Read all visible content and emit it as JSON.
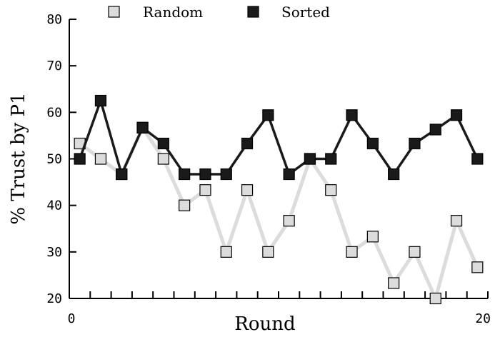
{
  "chart_data": {
    "type": "line",
    "title": "",
    "xlabel": "Round",
    "ylabel": "% Trust by P1",
    "xlim": [
      0,
      20
    ],
    "ylim": [
      20,
      80
    ],
    "x_ticks": [
      0,
      20
    ],
    "y_ticks": [
      20,
      30,
      40,
      50,
      60,
      70,
      80
    ],
    "x_minor_ticks": [
      1,
      2,
      3,
      4,
      5,
      6,
      7,
      8,
      9,
      10,
      11,
      12,
      13,
      14,
      15,
      16,
      17,
      18,
      19
    ],
    "grid": false,
    "legend_position": "top",
    "x": [
      0.5,
      1.5,
      2.5,
      3.5,
      4.5,
      5.5,
      6.5,
      7.5,
      8.5,
      9.5,
      10.5,
      11.5,
      12.5,
      13.5,
      14.5,
      15.5,
      16.5,
      17.5,
      18.5,
      19.5
    ],
    "series": [
      {
        "name": "Random",
        "marker_fill": "#dcdcdc",
        "line_color": "#dcdcdc",
        "values": [
          53.3,
          50,
          46.7,
          56.7,
          50,
          40,
          43.3,
          30,
          43.3,
          30,
          36.7,
          50,
          43.3,
          30,
          33.3,
          23.3,
          30,
          20,
          36.7,
          26.7
        ]
      },
      {
        "name": "Sorted",
        "marker_fill": "#1a1a1a",
        "line_color": "#1a1a1a",
        "values": [
          50,
          62.5,
          46.7,
          56.7,
          53.3,
          46.7,
          46.7,
          46.7,
          53.3,
          59.4,
          46.7,
          50,
          50,
          59.4,
          53.3,
          46.7,
          53.3,
          56.3,
          59.4,
          50
        ]
      }
    ]
  }
}
